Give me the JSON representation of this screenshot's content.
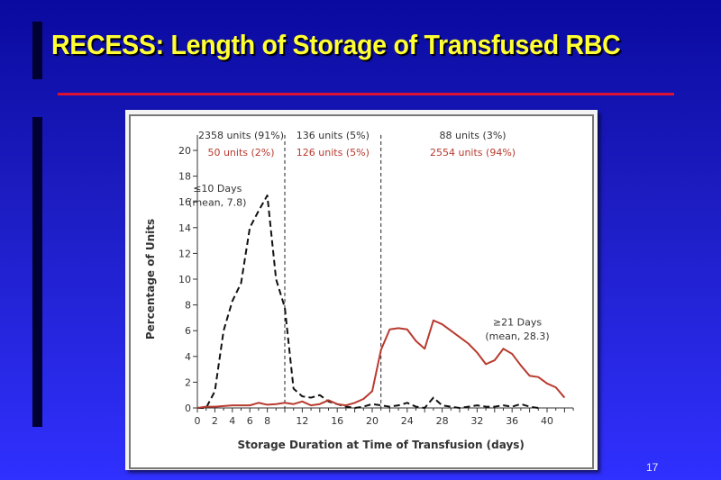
{
  "slide": {
    "title": "RECESS: Length of Storage of Transfused RBC",
    "page_number": "17",
    "colors": {
      "title": "#ffff33",
      "rule": "#dd1133",
      "background_top": "#0a0aa0",
      "background_bottom": "#3030ff"
    }
  },
  "chart_data": {
    "type": "line",
    "title": "",
    "xlabel": "Storage Duration at Time of Transfusion (days)",
    "ylabel": "Percentage of Units",
    "xlim": [
      0,
      43
    ],
    "ylim": [
      0,
      21
    ],
    "x_ticks": [
      0,
      2,
      4,
      6,
      8,
      12,
      16,
      20,
      24,
      28,
      32,
      36,
      40
    ],
    "y_ticks": [
      0,
      2,
      4,
      6,
      8,
      10,
      12,
      14,
      16,
      18,
      20
    ],
    "grid": false,
    "vertical_dividers": [
      10,
      21
    ],
    "x": [
      0,
      1,
      2,
      3,
      4,
      5,
      6,
      7,
      8,
      9,
      10,
      11,
      12,
      13,
      14,
      15,
      16,
      17,
      18,
      19,
      20,
      21,
      22,
      23,
      24,
      25,
      26,
      27,
      28,
      29,
      30,
      31,
      32,
      33,
      34,
      35,
      36,
      37,
      38,
      39,
      40,
      41,
      42
    ],
    "series": [
      {
        "name": "≤10 Days",
        "style": "dashed",
        "color": "#111111",
        "values": [
          0,
          0,
          1.3,
          6,
          8.3,
          9.7,
          14,
          15.3,
          16.5,
          10,
          7.8,
          1.5,
          0.9,
          0.8,
          1.0,
          0.5,
          0.3,
          0.1,
          0,
          0.1,
          0.3,
          0.2,
          0.1,
          0.2,
          0.4,
          0.1,
          0,
          0.8,
          0.2,
          0.1,
          0,
          0.1,
          0.2,
          0.1,
          0.1,
          0.2,
          0.1,
          0.3,
          0.1,
          0,
          null,
          null,
          null
        ]
      },
      {
        "name": "≥21 Days",
        "style": "solid",
        "color": "#b83a2e",
        "values": [
          0,
          0.1,
          0.1,
          0.15,
          0.2,
          0.2,
          0.2,
          0.4,
          0.25,
          0.3,
          0.4,
          0.3,
          0.5,
          0.2,
          0.3,
          0.6,
          0.3,
          0.2,
          0.4,
          0.7,
          1.3,
          4.5,
          6.1,
          6.2,
          6.1,
          5.2,
          4.6,
          6.8,
          6.5,
          6.0,
          5.5,
          5.0,
          4.3,
          3.4,
          3.7,
          4.6,
          4.2,
          3.3,
          2.5,
          2.4,
          1.9,
          1.6,
          0.8
        ]
      }
    ],
    "annotations": [
      {
        "text": "≤10 Days",
        "subtext": "(mean, 7.8)",
        "series": "≤10 Days"
      },
      {
        "text": "≥21 Days",
        "subtext": "(mean, 28.3)",
        "series": "≥21 Days"
      }
    ],
    "region_labels": [
      {
        "black": "2358 units (91%)",
        "red": "50 units (2%)"
      },
      {
        "black": "136 units (5%)",
        "red": "126 units (5%)"
      },
      {
        "black": "88 units (3%)",
        "red": "2554 units (94%)"
      }
    ]
  }
}
